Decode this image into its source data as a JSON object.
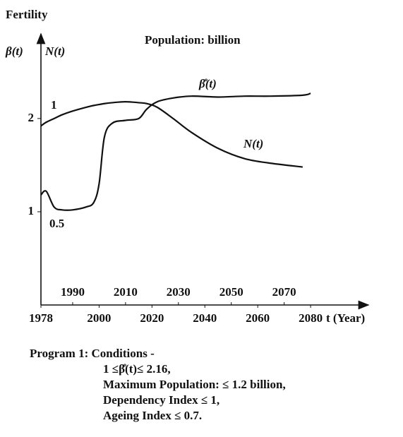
{
  "chart_data": {
    "type": "line",
    "title": "Population: billion",
    "y_label_top": "Fertility",
    "y_label_left": "β(t)",
    "y_label_right": "N(t)",
    "x_label": "t (Year)",
    "annotations": [
      "1",
      "0.5"
    ],
    "x": [
      1978,
      1980,
      1983,
      1986,
      1990,
      1995,
      1998,
      2000,
      2002,
      2005,
      2010,
      2015,
      2018,
      2022,
      2028,
      2035,
      2045,
      2055,
      2065,
      2077,
      2080
    ],
    "series": [
      {
        "name": "β̊(t)",
        "color": "#111111",
        "values": [
          1.18,
          1.22,
          1.05,
          1.02,
          1.02,
          1.05,
          1.1,
          1.3,
          1.8,
          1.95,
          1.98,
          2.0,
          2.1,
          2.18,
          2.22,
          2.24,
          2.23,
          2.24,
          2.24,
          2.25,
          2.27
        ]
      },
      {
        "name": "N(t)",
        "color": "#111111",
        "values": [
          1.92,
          1.96,
          2.0,
          2.04,
          2.08,
          2.12,
          2.14,
          2.15,
          2.16,
          2.17,
          2.18,
          2.17,
          2.16,
          2.12,
          2.0,
          1.85,
          1.68,
          1.57,
          1.52,
          1.48,
          null
        ]
      }
    ],
    "xlim": [
      1978,
      2100
    ],
    "xticks": [
      1978,
      2000,
      2020,
      2040,
      2060,
      2080
    ],
    "xticks_upper": [
      1990,
      2010,
      2030,
      2050,
      2070
    ],
    "ylim": [
      0,
      2.9
    ],
    "yticks": [
      1,
      2
    ],
    "grid": false
  },
  "notes": [
    "Program 1: Conditions -",
    "1 ≤β̊(t)≤ 2.16,",
    "Maximum Population: ≤ 1.2 billion,",
    "Dependency Index ≤ 1,",
    "Ageing Index ≤ 0.7."
  ]
}
